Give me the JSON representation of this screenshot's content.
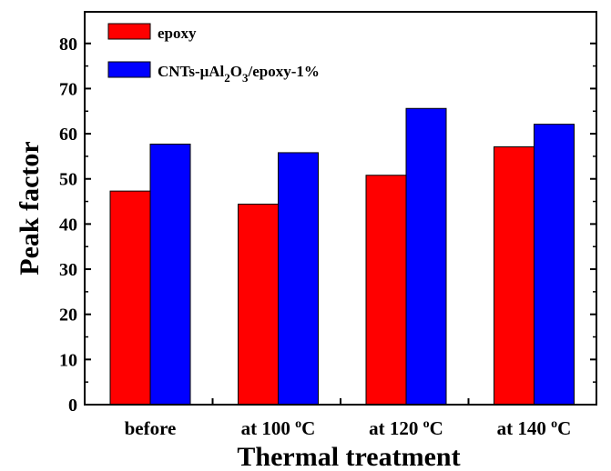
{
  "chart_data": {
    "type": "bar",
    "xlabel": "Thermal treatment",
    "ylabel": "Peak factor",
    "ylim": [
      0,
      87
    ],
    "yticks": [
      0,
      10,
      20,
      30,
      40,
      50,
      60,
      70,
      80
    ],
    "grid": false,
    "legend_position": "top-left",
    "categories": [
      {
        "base": "before",
        "sup": "",
        "tail": ""
      },
      {
        "base": "at 100 ",
        "sup": "o",
        "tail": "C"
      },
      {
        "base": "at 120 ",
        "sup": "o",
        "tail": "C"
      },
      {
        "base": "at 140 ",
        "sup": "o",
        "tail": "C"
      }
    ],
    "series": [
      {
        "name": "epoxy",
        "color": "#ff0000",
        "values": [
          47.3,
          44.4,
          50.8,
          57.1
        ]
      },
      {
        "name": "CNTs-μAl2O3/epoxy-1%",
        "name_parts": [
          "CNTs-μAl",
          "2",
          "O",
          "3",
          "/epoxy-1%"
        ],
        "color": "#0000ff",
        "values": [
          57.7,
          55.8,
          65.6,
          62.1
        ]
      }
    ]
  }
}
